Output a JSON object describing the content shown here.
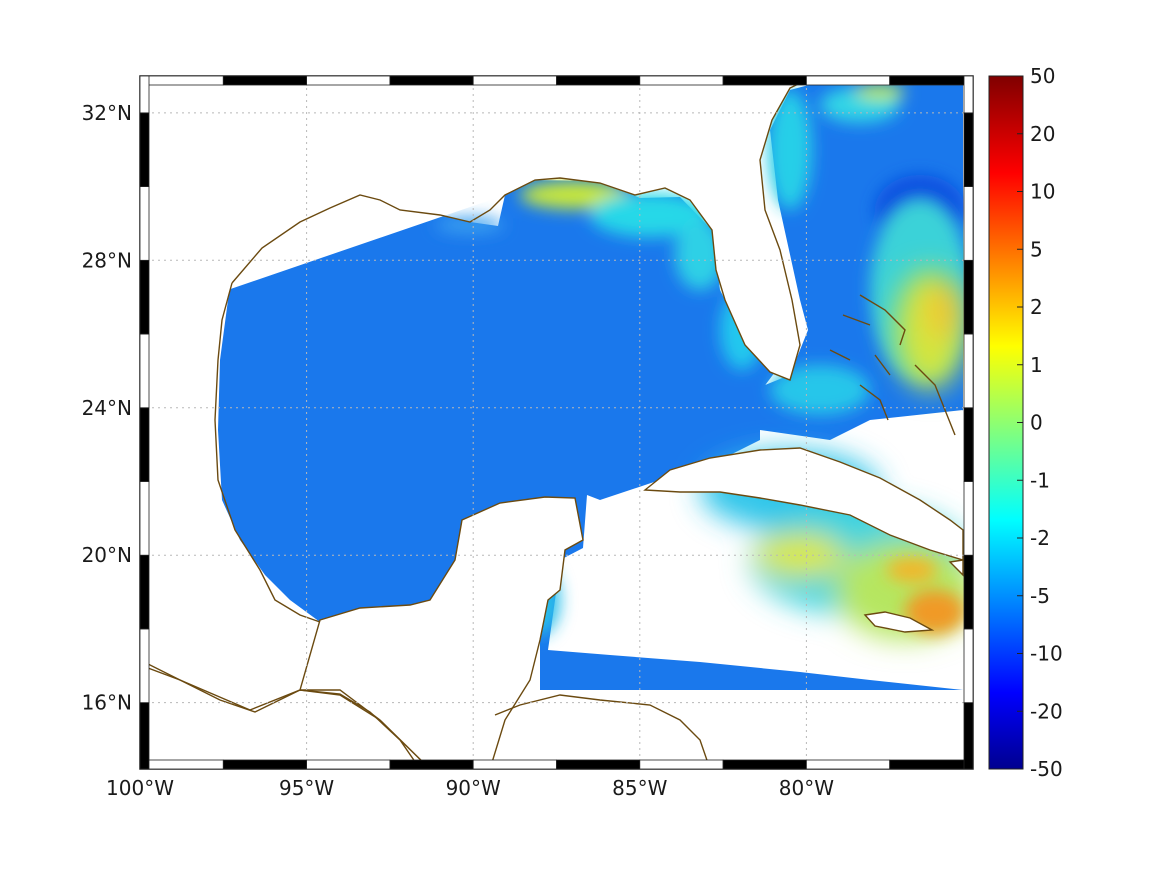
{
  "map": {
    "lon_range": [
      -100,
      -75
    ],
    "lat_range": [
      14.2,
      33
    ],
    "lon_ticks": [
      {
        "value": -100,
        "label": "100°W"
      },
      {
        "value": -95,
        "label": "95°W"
      },
      {
        "value": -90,
        "label": "90°W"
      },
      {
        "value": -85,
        "label": "85°W"
      },
      {
        "value": -80,
        "label": "80°W"
      }
    ],
    "lat_ticks": [
      {
        "value": 32,
        "label": "32°N"
      },
      {
        "value": 28,
        "label": "28°N"
      },
      {
        "value": 24,
        "label": "24°N"
      },
      {
        "value": 20,
        "label": "20°N"
      },
      {
        "value": 16,
        "label": "16°N"
      }
    ],
    "grid": "dotted",
    "frame": "black-white",
    "coastline_color": "#6b4a10"
  },
  "colorbar": {
    "placement": "right",
    "colormap": "jet",
    "tick_labels": [
      "50",
      "20",
      "10",
      "5",
      "2",
      "1",
      "0",
      "-1",
      "-2",
      "-5",
      "-10",
      "-20",
      "-50"
    ]
  }
}
